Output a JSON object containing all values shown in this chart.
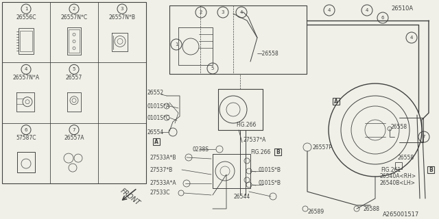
{
  "bg_color": "#f0f0e8",
  "line_color": "#404040",
  "table_cells": [
    {
      "num": "1",
      "part": "26556C",
      "col": 0,
      "row": 0
    },
    {
      "num": "2",
      "part": "26557N*C",
      "col": 1,
      "row": 0
    },
    {
      "num": "3",
      "part": "26557N*B",
      "col": 2,
      "row": 0
    },
    {
      "num": "4",
      "part": "26557N*A",
      "col": 0,
      "row": 1
    },
    {
      "num": "5",
      "part": "26557",
      "col": 1,
      "row": 1
    },
    {
      "num": "6",
      "part": "57587C",
      "col": 0,
      "row": 2
    },
    {
      "num": "7",
      "part": "26557A",
      "col": 1,
      "row": 2
    }
  ]
}
